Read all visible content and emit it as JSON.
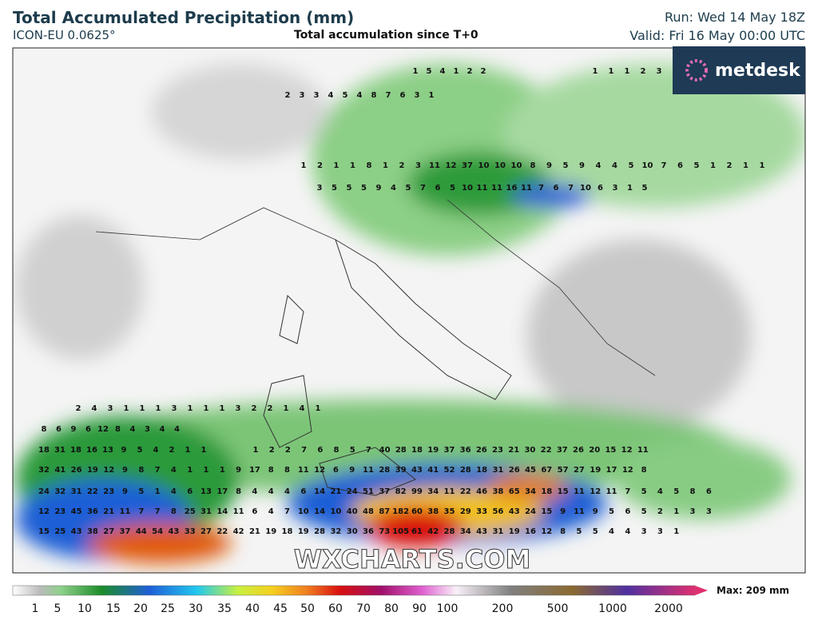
{
  "header": {
    "title": "Total Accumulated Precipitation (mm)",
    "model": "ICON-EU 0.0625°",
    "subtitle": "Total accumulation since T+0",
    "run": "Run: Wed 14 May 18Z",
    "valid": "Valid: Fri 16 May 00:00 UTC"
  },
  "brand": "metdesk",
  "watermark": "WXCHARTS.COM",
  "legend": {
    "ticks": [
      1,
      5,
      10,
      15,
      20,
      25,
      30,
      35,
      40,
      45,
      50,
      60,
      70,
      80,
      90,
      100,
      200,
      500,
      1000,
      2000
    ],
    "max_label": "Max: 209 mm"
  },
  "map": {
    "value_rows": [
      [
        1,
        5,
        4,
        1,
        2,
        2
      ],
      [
        1,
        1,
        1,
        2,
        3
      ],
      [
        2,
        3,
        3,
        4,
        5,
        4,
        8,
        7,
        6,
        3,
        1
      ],
      [
        1,
        2,
        1,
        1,
        8,
        1,
        2,
        3,
        11,
        12,
        37,
        10,
        10,
        10,
        8,
        9,
        5,
        9,
        4,
        4,
        5,
        10,
        7,
        6,
        5,
        1,
        2,
        1,
        1
      ],
      [
        3,
        5,
        5,
        5,
        9,
        4,
        5,
        7,
        6,
        5,
        10,
        11,
        11,
        16,
        11,
        7,
        6,
        7,
        10,
        6,
        3,
        1,
        5
      ],
      [
        2,
        4,
        3,
        1,
        1,
        1,
        3,
        1,
        1,
        1,
        3,
        2,
        2,
        1,
        4,
        1
      ],
      [
        8,
        6,
        9,
        6,
        12,
        8,
        4,
        3,
        4,
        4
      ],
      [
        18,
        31,
        18,
        16,
        13,
        9,
        5,
        4,
        2,
        1,
        1
      ],
      [
        1,
        2,
        2,
        7,
        6,
        8,
        5,
        7,
        40,
        28,
        18,
        19,
        37,
        36,
        26,
        23,
        21,
        30,
        22,
        37,
        26,
        20,
        15,
        12,
        11
      ],
      [
        32,
        41,
        26,
        19,
        12,
        9,
        8,
        7,
        4,
        1,
        1,
        1,
        9,
        17,
        8,
        8,
        11,
        12,
        6,
        9,
        11,
        28,
        39,
        43,
        41,
        52,
        28,
        18,
        31,
        26,
        45,
        67,
        57,
        27,
        19,
        17,
        12,
        8
      ],
      [
        24,
        32,
        31,
        22,
        23,
        9,
        5,
        1,
        4,
        6,
        13,
        17,
        8,
        4,
        4,
        4,
        6,
        14,
        21,
        24,
        51,
        37,
        82,
        99,
        34,
        11,
        22,
        46,
        38,
        65,
        34,
        18,
        15,
        11,
        12,
        11,
        7,
        5,
        4,
        5,
        8,
        6
      ],
      [
        12,
        23,
        45,
        36,
        21,
        11,
        7,
        7,
        8,
        25,
        31,
        14,
        11,
        6,
        4,
        7,
        10,
        14,
        10,
        40,
        48,
        87,
        182,
        60,
        38,
        35,
        29,
        33,
        56,
        43,
        24,
        15,
        9,
        11,
        9,
        5,
        6,
        5,
        2,
        1,
        3,
        3
      ],
      [
        15,
        25,
        43,
        38,
        27,
        37,
        44,
        54,
        43,
        33,
        27,
        22,
        42,
        21,
        19,
        18,
        19,
        28,
        32,
        30,
        36,
        73,
        105,
        61,
        42,
        28,
        34,
        43,
        31,
        19,
        16,
        12,
        8,
        5,
        5,
        4,
        4,
        3,
        3,
        1
      ]
    ]
  }
}
